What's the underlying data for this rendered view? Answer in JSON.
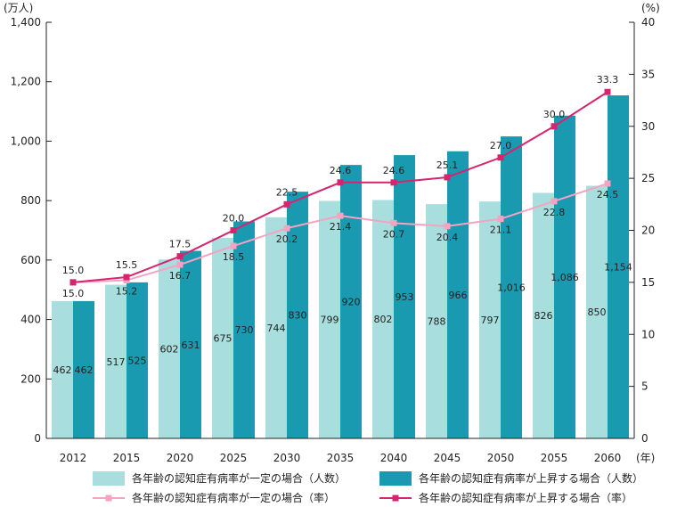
{
  "chart_data": {
    "type": "bar",
    "categories": [
      "2012",
      "2015",
      "2020",
      "2025",
      "2030",
      "2035",
      "2040",
      "2045",
      "2050",
      "2055",
      "2060"
    ],
    "x_unit": "(年)",
    "y_left_unit": "(万人)",
    "y_right_unit": "(%)",
    "ylim_left": [
      0,
      1400
    ],
    "ylim_right": [
      0,
      40
    ],
    "y_left_ticks": [
      "0",
      "200",
      "400",
      "600",
      "800",
      "1,000",
      "1,200",
      "1,400"
    ],
    "y_right_ticks": [
      "0",
      "5",
      "10",
      "15",
      "20",
      "25",
      "30",
      "35",
      "40"
    ],
    "series": [
      {
        "name": "各年齢の認知症有病率が一定の場合（人数）",
        "kind": "bar",
        "axis": "left",
        "color": "#a8dedd",
        "values": [
          462,
          517,
          602,
          675,
          744,
          799,
          802,
          788,
          797,
          826,
          850
        ],
        "labels": [
          "462",
          "517",
          "602",
          "675",
          "744",
          "799",
          "802",
          "788",
          "797",
          "826",
          "850"
        ]
      },
      {
        "name": "各年齢の認知症有病率が上昇する場合（人数）",
        "kind": "bar",
        "axis": "left",
        "color": "#1a9ab0",
        "values": [
          462,
          525,
          631,
          730,
          830,
          920,
          953,
          966,
          1016,
          1086,
          1154
        ],
        "labels": [
          "462",
          "525",
          "631",
          "730",
          "830",
          "920",
          "953",
          "966",
          "1,016",
          "1,086",
          "1,154"
        ]
      },
      {
        "name": "各年齢の認知症有病率が一定の場合（率）",
        "kind": "line",
        "axis": "right",
        "color": "#f5a3c0",
        "values": [
          15.0,
          15.2,
          16.7,
          18.5,
          20.2,
          21.4,
          20.7,
          20.4,
          21.1,
          22.8,
          24.5
        ],
        "labels": [
          "15.0",
          "15.2",
          "16.7",
          "18.5",
          "20.2",
          "21.4",
          "20.7",
          "20.4",
          "21.1",
          "22.8",
          "24.5"
        ]
      },
      {
        "name": "各年齢の認知症有病率が上昇する場合（率）",
        "kind": "line",
        "axis": "right",
        "color": "#d6246e",
        "values": [
          15.0,
          15.5,
          17.5,
          20.0,
          22.5,
          24.6,
          24.6,
          25.1,
          27.0,
          30.0,
          33.3
        ],
        "labels": [
          "15.0",
          "15.5",
          "17.5",
          "20.0",
          "22.5",
          "24.6",
          "24.6",
          "25.1",
          "27.0",
          "30.0",
          "33.3"
        ]
      }
    ],
    "legend_position": "bottom",
    "grid": false
  }
}
